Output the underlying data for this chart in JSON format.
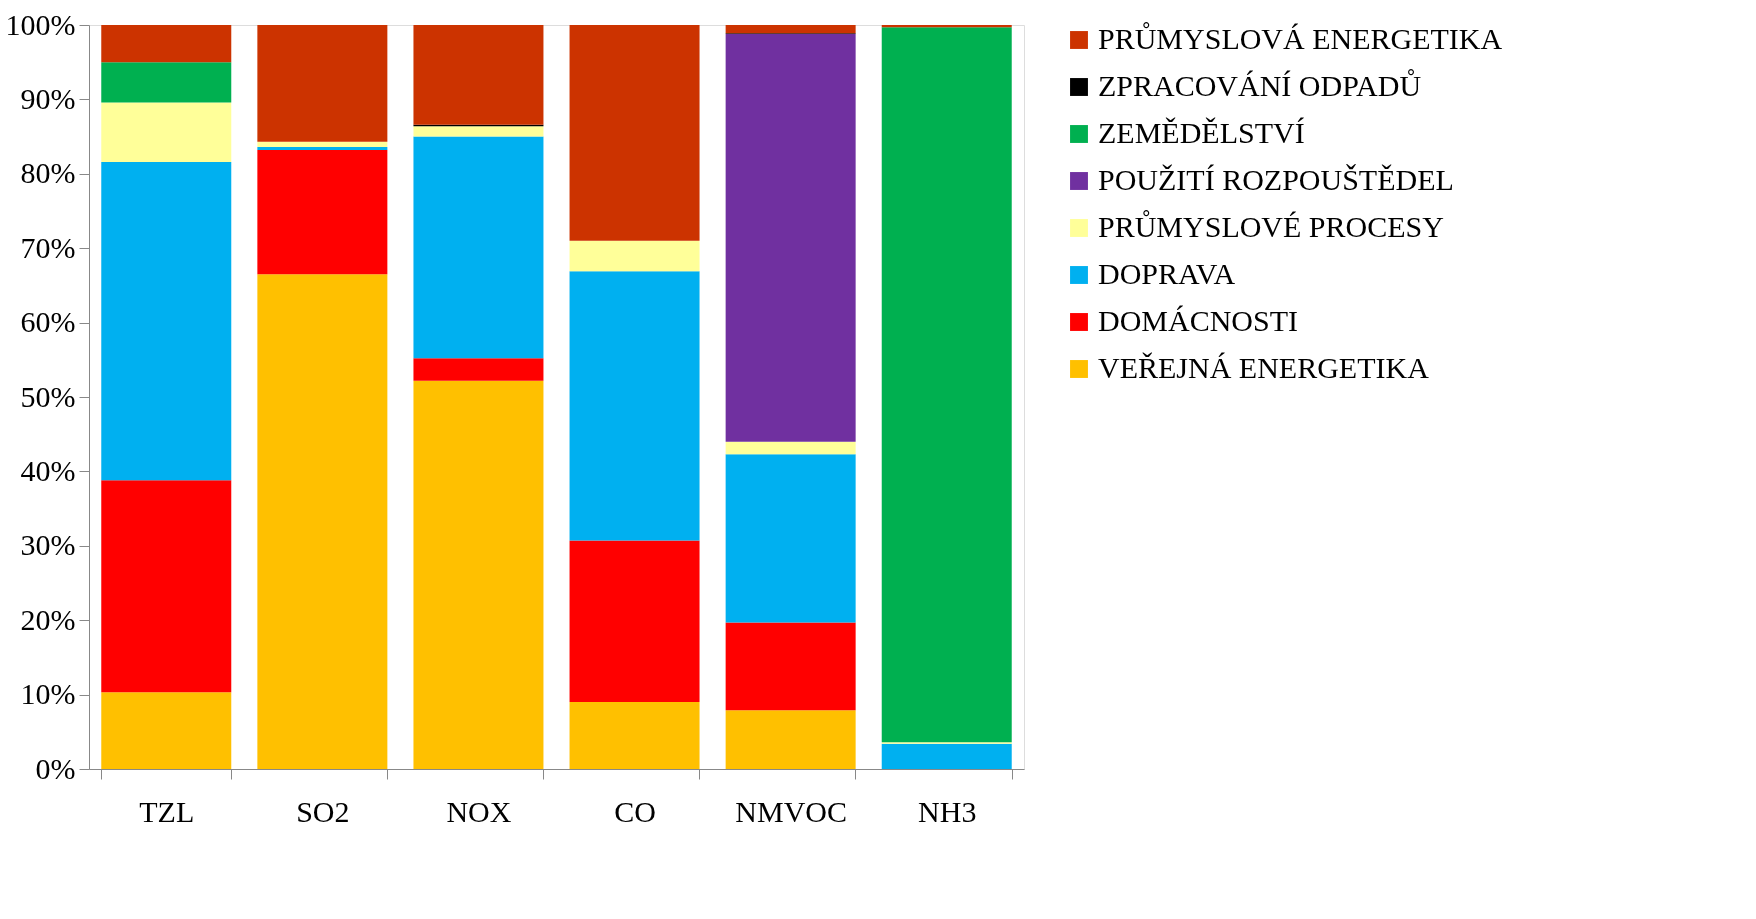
{
  "chart_data": {
    "type": "bar",
    "stacked": true,
    "legend": "right",
    "grid": false,
    "categories": [
      "TZL",
      "SO2",
      "NOX",
      "CO",
      "NMVOC",
      "NH3"
    ],
    "ylim": [
      0,
      100
    ],
    "yticks": [
      {
        "value": 0,
        "label": "0%"
      },
      {
        "value": 10,
        "label": "10%"
      },
      {
        "value": 20,
        "label": "20%"
      },
      {
        "value": 30,
        "label": "30%"
      },
      {
        "value": 40,
        "label": "40%"
      },
      {
        "value": 50,
        "label": "50%"
      },
      {
        "value": 60,
        "label": "60%"
      },
      {
        "value": 70,
        "label": "70%"
      },
      {
        "value": 80,
        "label": "80%"
      },
      {
        "value": 90,
        "label": "90%"
      },
      {
        "value": 100,
        "label": "100%"
      }
    ],
    "series": [
      {
        "name": "VEŘEJNÁ ENERGETIKA",
        "color": "#ffc000",
        "values": [
          10.3,
          66.5,
          52.2,
          9.0,
          7.9,
          0
        ]
      },
      {
        "name": "DOMÁCNOSTI",
        "color": "#ff0000",
        "values": [
          28.5,
          16.7,
          3.0,
          21.7,
          11.8,
          0
        ]
      },
      {
        "name": "DOPRAVA",
        "color": "#00b0f0",
        "values": [
          42.8,
          0.4,
          29.8,
          36.2,
          22.6,
          3.4
        ]
      },
      {
        "name": "PRŮMYSLOVÉ PROCESY",
        "color": "#ffff99",
        "values": [
          8.0,
          0.7,
          1.4,
          4.1,
          1.7,
          0.2
        ]
      },
      {
        "name": "POUŽITÍ ROZPOUŠTĚDEL",
        "color": "#7030a0",
        "values": [
          0,
          0,
          0,
          0,
          54.8,
          0
        ]
      },
      {
        "name": "ZEMĚDĚLSTVÍ",
        "color": "#00b050",
        "values": [
          5.4,
          0,
          0,
          0,
          0,
          96.1
        ]
      },
      {
        "name": "ZPRACOVÁNÍ ODPADŮ",
        "color": "#000000",
        "values": [
          0,
          0,
          0.2,
          0,
          0.1,
          0
        ]
      },
      {
        "name": "PRŮMYSLOVÁ ENERGETIKA",
        "color": "#cc3300",
        "values": [
          5.0,
          15.7,
          13.4,
          29.0,
          1.1,
          0.3
        ]
      }
    ]
  }
}
